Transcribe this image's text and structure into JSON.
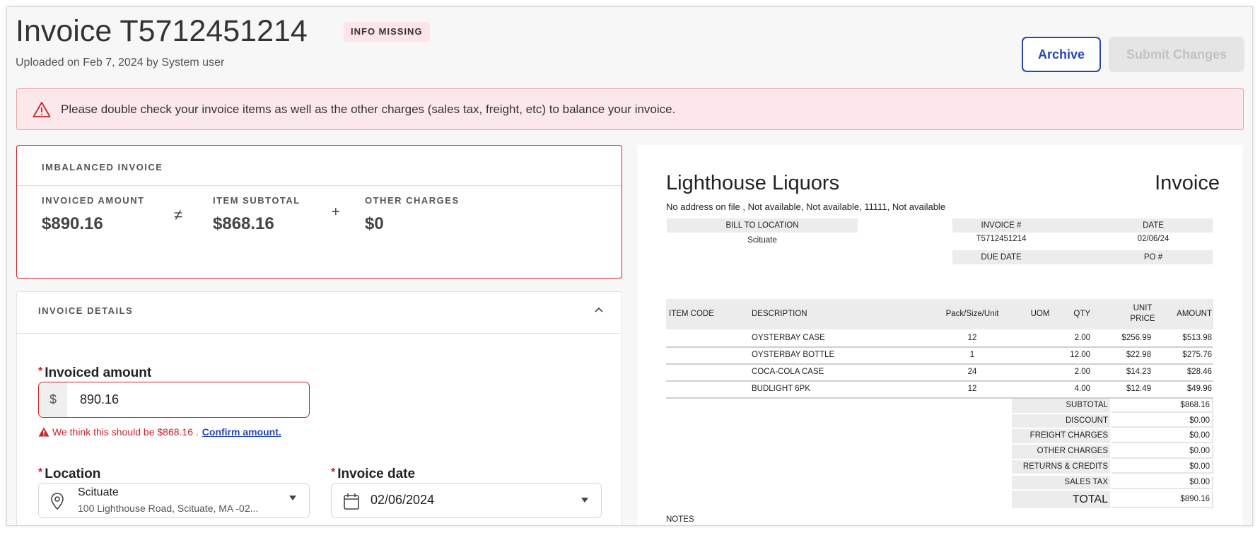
{
  "header": {
    "title": "Invoice T5712451214",
    "badge": "INFO MISSING",
    "subtitle": "Uploaded on Feb 7, 2024 by System user",
    "archive_label": "Archive",
    "submit_label": "Submit Changes"
  },
  "alert": {
    "icon": "warning-triangle-icon",
    "message": "Please double check your invoice items as well as the other charges (sales tax, freight, etc) to balance your invoice."
  },
  "imbalance": {
    "title": "IMBALANCED INVOICE",
    "invoiced_label": "INVOICED AMOUNT",
    "invoiced_value": "$890.16",
    "neq": "≠",
    "subtotal_label": "ITEM SUBTOTAL",
    "subtotal_value": "$868.16",
    "plus": "+",
    "other_label": "OTHER CHARGES",
    "other_value": "$0"
  },
  "details": {
    "title": "INVOICE DETAILS",
    "req": "*",
    "amount_label": "Invoiced amount",
    "currency": "$",
    "amount_value": "890.16",
    "error_text": "We think this should be $868.16 .",
    "confirm_link": "Confirm amount.",
    "location_label": "Location",
    "location_name": "Scituate",
    "location_address": "100 Lighthouse Road, Scituate, MA -02...",
    "date_label": "Invoice date",
    "date_value": "02/06/2024"
  },
  "document": {
    "vendor": "Lighthouse Liquors",
    "doc_title": "Invoice",
    "address": "No address on file , Not available, Not available, 11111, Not available",
    "bill_to_label": "BILL TO LOCATION",
    "bill_to": "Scituate",
    "invoice_no_label": "INVOICE #",
    "invoice_no": "T5712451214",
    "date_label": "DATE",
    "date": "02/06/24",
    "due_date_label": "DUE DATE",
    "po_label": "PO #",
    "columns": [
      "ITEM CODE",
      "DESCRIPTION",
      "Pack/Size/Unit",
      "UOM",
      "QTY",
      "UNIT PRICE",
      "AMOUNT"
    ],
    "items": [
      {
        "code": "",
        "description": "OYSTERBAY CASE",
        "pack": "12",
        "uom": "",
        "qty": "2.00",
        "unit_price": "$256.99",
        "amount": "$513.98"
      },
      {
        "code": "",
        "description": "OYSTERBAY BOTTLE",
        "pack": "1",
        "uom": "",
        "qty": "12.00",
        "unit_price": "$22.98",
        "amount": "$275.76"
      },
      {
        "code": "",
        "description": "COCA-COLA CASE",
        "pack": "24",
        "uom": "",
        "qty": "2.00",
        "unit_price": "$14.23",
        "amount": "$28.46"
      },
      {
        "code": "",
        "description": "BUDLIGHT 6PK",
        "pack": "12",
        "uom": "",
        "qty": "4.00",
        "unit_price": "$12.49",
        "amount": "$49.96"
      }
    ],
    "totals": [
      {
        "label": "SUBTOTAL",
        "value": "$868.16"
      },
      {
        "label": "DISCOUNT",
        "value": "$0.00"
      },
      {
        "label": "FREIGHT CHARGES",
        "value": "$0.00"
      },
      {
        "label": "OTHER CHARGES",
        "value": "$0.00"
      },
      {
        "label": "RETURNS & CREDITS",
        "value": "$0.00"
      },
      {
        "label": "SALES TAX",
        "value": "$0.00"
      }
    ],
    "total_label": "TOTAL",
    "total_value": "$890.16",
    "notes_label": "NOTES"
  },
  "colors": {
    "accent": "#2546b5",
    "error": "#c8232c",
    "alert_bg": "#fce8ea"
  }
}
